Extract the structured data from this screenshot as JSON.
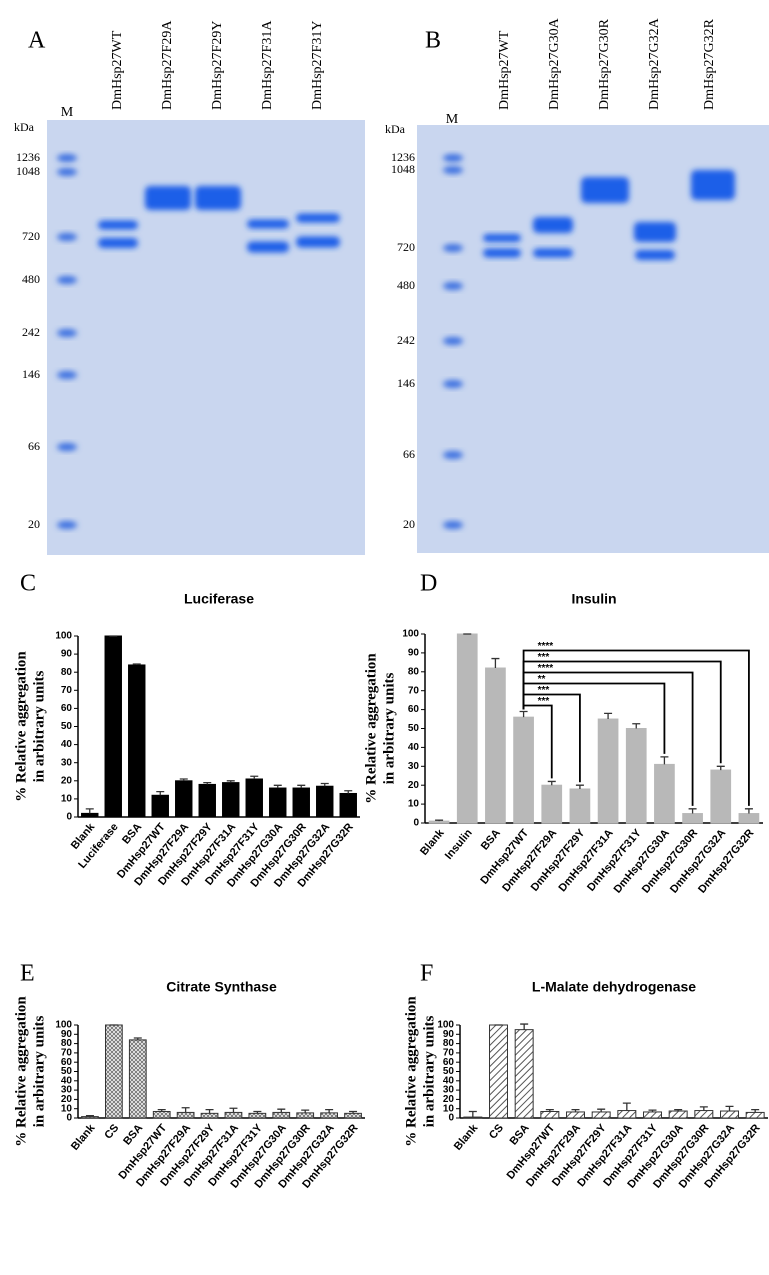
{
  "gels": [
    {
      "panel": "A",
      "marker_lane": "M",
      "unit": "kDa",
      "markers": [
        "1236",
        "1048",
        "720",
        "480",
        "242",
        "146",
        "66",
        "20"
      ],
      "lanes": [
        "DmHsp27WT",
        "DmHsp27F29A",
        "DmHsp27F29Y",
        "DmHsp27F31A",
        "DmHsp27F31Y"
      ]
    },
    {
      "panel": "B",
      "marker_lane": "M",
      "unit": "kDa",
      "markers": [
        "1236",
        "1048",
        "720",
        "480",
        "242",
        "146",
        "66",
        "20"
      ],
      "lanes": [
        "DmHsp27WT",
        "DmHsp27G30A",
        "DmHsp27G30R",
        "DmHsp27G32A",
        "DmHsp27G32R"
      ]
    }
  ],
  "chart_data": [
    {
      "type": "bar",
      "panel": "C",
      "title": "Luciferase",
      "ylabel": [
        "% Relative aggregation",
        "in arbitrary units"
      ],
      "categories": [
        "Blank",
        "Luciferase",
        "BSA",
        "DmHsp27WT",
        "DmHsp27F29A",
        "DmHsp27F29Y",
        "DmHsp27F31A",
        "DmHsp27F31Y",
        "DmHsp27G30A",
        "DmHsp27G30R",
        "DmHsp27G32A",
        "DmHsp27G32R"
      ],
      "values": [
        2,
        100,
        84,
        12,
        20,
        18,
        19,
        21,
        16,
        16,
        17,
        13
      ],
      "errors": [
        2.5,
        0,
        0.5,
        2,
        1,
        1,
        1,
        1.5,
        1.5,
        1.5,
        1.5,
        1.5
      ],
      "color": "#000000",
      "pattern": "solid",
      "ylim": [
        0,
        100
      ],
      "yticks": [
        0,
        10,
        20,
        30,
        40,
        50,
        60,
        70,
        80,
        90,
        100
      ]
    },
    {
      "type": "bar",
      "panel": "D",
      "title": "Insulin",
      "ylabel": [
        "% Relative aggregation",
        "in arbitrary units"
      ],
      "categories": [
        "Blank",
        "Insulin",
        "BSA",
        "DmHsp27WT",
        "DmHsp27F29A",
        "DmHsp27F29Y",
        "DmHsp27F31A",
        "DmHsp27F31Y",
        "DmHsp27G30A",
        "DmHsp27G30R",
        "DmHsp27G32A",
        "DmHsp27G32R"
      ],
      "values": [
        1,
        100,
        82,
        56,
        20,
        18,
        55,
        50,
        31,
        5,
        28,
        5
      ],
      "errors": [
        0.5,
        0,
        5,
        3,
        2,
        2,
        3,
        2.5,
        4,
        2.5,
        2,
        2.5
      ],
      "significance": [
        null,
        null,
        null,
        null,
        "***",
        "***",
        null,
        null,
        "**",
        "****",
        "***",
        "****"
      ],
      "color": "#b8b8b8",
      "pattern": "solid",
      "ylim": [
        0,
        100
      ],
      "yticks": [
        0,
        10,
        20,
        30,
        40,
        50,
        60,
        70,
        80,
        90,
        100
      ]
    },
    {
      "type": "bar",
      "panel": "E",
      "title": "Citrate Synthase",
      "ylabel": [
        "% Relative aggregation",
        "in arbitrary units"
      ],
      "categories": [
        "Blank",
        "CS",
        "BSA",
        "DmHsp27WT",
        "DmHsp27F29A",
        "DmHsp27F29Y",
        "DmHsp27F31A",
        "DmHsp27F31Y",
        "DmHsp27G30A",
        "DmHsp27G30R",
        "DmHsp27G32A",
        "DmHsp27G32R"
      ],
      "values": [
        1.5,
        100,
        84,
        7,
        6,
        5,
        6,
        5,
        6,
        5.5,
        5.5,
        5
      ],
      "errors": [
        1,
        0,
        2,
        2,
        5,
        4,
        4.5,
        2,
        3.5,
        3,
        3.5,
        2
      ],
      "color": "#8a8a8a",
      "pattern": "crosshatch",
      "ylim": [
        0,
        100
      ],
      "yticks": [
        0,
        10,
        20,
        30,
        40,
        50,
        60,
        70,
        80,
        90,
        100
      ]
    },
    {
      "type": "bar",
      "panel": "F",
      "title": "L-Malate dehydrogenase",
      "ylabel": [
        "% Relative aggregation",
        "in arbitrary units"
      ],
      "categories": [
        "Blank",
        "CS",
        "BSA",
        "DmHsp27WT",
        "DmHsp27F29A",
        "DmHsp27F29Y",
        "DmHsp27F31A",
        "DmHsp27F31Y",
        "DmHsp27G30A",
        "DmHsp27G30R",
        "DmHsp27G32A",
        "DmHsp27G32R"
      ],
      "values": [
        1,
        100,
        95,
        7,
        6.5,
        6.5,
        8,
        6.5,
        7.5,
        8,
        7.5,
        6
      ],
      "errors": [
        6,
        0,
        6,
        2,
        2.5,
        3,
        8,
        2,
        1.5,
        4,
        5,
        3
      ],
      "color": "#555555",
      "pattern": "hatch",
      "ylim": [
        0,
        100
      ],
      "yticks": [
        0,
        10,
        20,
        30,
        40,
        50,
        60,
        70,
        80,
        90,
        100
      ]
    }
  ]
}
